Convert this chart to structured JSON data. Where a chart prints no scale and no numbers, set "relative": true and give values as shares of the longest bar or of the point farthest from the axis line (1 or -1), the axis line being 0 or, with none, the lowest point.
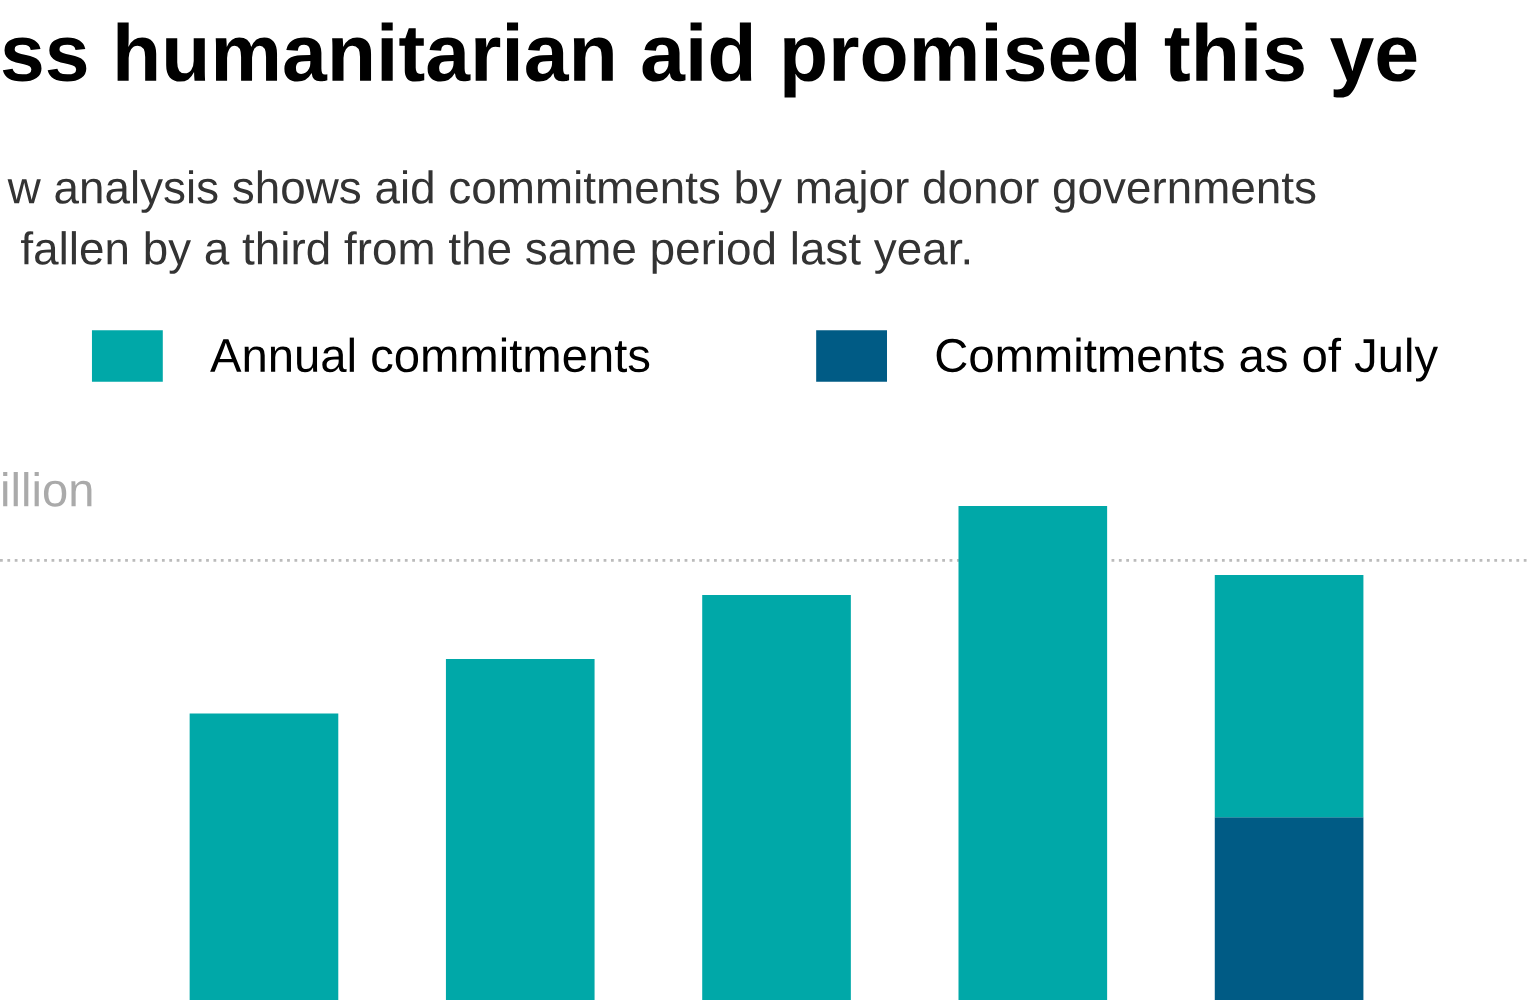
{
  "chart_data": {
    "type": "bar",
    "title": "ss humanitarian aid promised this ye",
    "subtitle": "w analysis shows aid commitments by major donor governments\n fallen by a third from the same period last year.",
    "ylabel": "illion",
    "categories": [
      null,
      null,
      null,
      null,
      null
    ],
    "relative": true,
    "stacked": true,
    "series": [
      {
        "name": "Commitments as of July",
        "color": "#005b85",
        "values": [
          null,
          null,
          null,
          null,
          0.37
        ]
      },
      {
        "name": "Annual commitments",
        "color": "#00a8a8",
        "values": [
          0.58,
          0.69,
          0.82,
          1.0,
          0.49
        ]
      }
    ],
    "ref_lines": [
      {
        "axis": "y",
        "value": 0.89,
        "color": "#bbbbbb",
        "line_style": "dotted"
      }
    ],
    "legend": "top",
    "grid": false
  }
}
